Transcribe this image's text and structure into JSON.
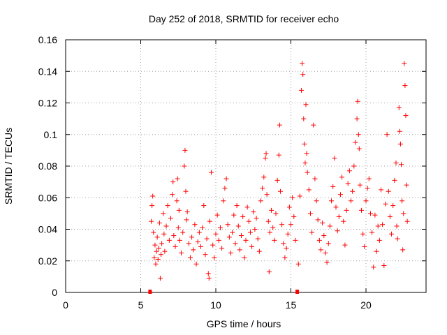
{
  "chart_data": {
    "type": "scatter",
    "title": "Day 252 of 2018, SRMTID for receiver echo",
    "xlabel": "GPS time / hours",
    "ylabel": "SRMTID / TECUs",
    "xlim": [
      0,
      24
    ],
    "ylim": [
      0,
      0.16
    ],
    "x_ticks": [
      0,
      5,
      10,
      15,
      20
    ],
    "x_tick_labels": [
      "0",
      "5",
      "10",
      "15",
      "20"
    ],
    "y_ticks": [
      0,
      0.02,
      0.04,
      0.06,
      0.08,
      0.1,
      0.12,
      0.14,
      0.16
    ],
    "y_tick_labels": [
      "0",
      "0.02",
      "0.04",
      "0.06",
      "0.08",
      "0.1",
      "0.12",
      "0.14",
      "0.16"
    ],
    "grid": true,
    "marker": "+",
    "marker_color": "#ff0000",
    "data_gap_markers_x": [
      5.6,
      15.4
    ],
    "series": [
      {
        "name": "SRMTID",
        "points": [
          [
            5.7,
            0.045
          ],
          [
            5.75,
            0.055
          ],
          [
            5.8,
            0.061
          ],
          [
            5.85,
            0.038
          ],
          [
            5.9,
            0.022
          ],
          [
            5.95,
            0.03
          ],
          [
            6.0,
            0.018
          ],
          [
            6.05,
            0.026
          ],
          [
            6.1,
            0.035
          ],
          [
            6.15,
            0.021
          ],
          [
            6.2,
            0.028
          ],
          [
            6.25,
            0.044
          ],
          [
            6.3,
            0.009
          ],
          [
            6.35,
            0.024
          ],
          [
            6.4,
            0.031
          ],
          [
            6.5,
            0.05
          ],
          [
            6.55,
            0.037
          ],
          [
            6.6,
            0.026
          ],
          [
            6.7,
            0.042
          ],
          [
            6.8,
            0.055
          ],
          [
            6.9,
            0.033
          ],
          [
            7.0,
            0.047
          ],
          [
            7.1,
            0.062
          ],
          [
            7.15,
            0.07
          ],
          [
            7.2,
            0.036
          ],
          [
            7.3,
            0.029
          ],
          [
            7.4,
            0.058
          ],
          [
            7.45,
            0.072
          ],
          [
            7.5,
            0.041
          ],
          [
            7.55,
            0.052
          ],
          [
            7.6,
            0.033
          ],
          [
            7.7,
            0.025
          ],
          [
            7.8,
            0.038
          ],
          [
            7.9,
            0.08
          ],
          [
            7.95,
            0.09
          ],
          [
            8.0,
            0.064
          ],
          [
            8.05,
            0.046
          ],
          [
            8.1,
            0.051
          ],
          [
            8.2,
            0.031
          ],
          [
            8.3,
            0.022
          ],
          [
            8.4,
            0.035
          ],
          [
            8.5,
            0.027
          ],
          [
            8.6,
            0.043
          ],
          [
            8.7,
            0.018
          ],
          [
            8.8,
            0.032
          ],
          [
            8.9,
            0.038
          ],
          [
            9.0,
            0.029
          ],
          [
            9.1,
            0.041
          ],
          [
            9.2,
            0.055
          ],
          [
            9.3,
            0.024
          ],
          [
            9.4,
            0.034
          ],
          [
            9.5,
            0.012
          ],
          [
            9.55,
            0.009
          ],
          [
            9.6,
            0.045
          ],
          [
            9.7,
            0.076
          ],
          [
            9.8,
            0.03
          ],
          [
            9.9,
            0.022
          ],
          [
            10.0,
            0.037
          ],
          [
            10.1,
            0.049
          ],
          [
            10.2,
            0.033
          ],
          [
            10.3,
            0.041
          ],
          [
            10.4,
            0.028
          ],
          [
            10.5,
            0.058
          ],
          [
            10.6,
            0.066
          ],
          [
            10.7,
            0.072
          ],
          [
            10.8,
            0.043
          ],
          [
            10.9,
            0.035
          ],
          [
            11.0,
            0.025
          ],
          [
            11.1,
            0.038
          ],
          [
            11.2,
            0.049
          ],
          [
            11.3,
            0.031
          ],
          [
            11.4,
            0.055
          ],
          [
            11.5,
            0.042
          ],
          [
            11.6,
            0.027
          ],
          [
            11.7,
            0.036
          ],
          [
            11.8,
            0.048
          ],
          [
            11.9,
            0.022
          ],
          [
            12.0,
            0.033
          ],
          [
            12.1,
            0.054
          ],
          [
            12.2,
            0.045
          ],
          [
            12.3,
            0.038
          ],
          [
            12.4,
            0.029
          ],
          [
            12.5,
            0.051
          ],
          [
            12.6,
            0.04
          ],
          [
            12.7,
            0.047
          ],
          [
            12.8,
            0.034
          ],
          [
            12.9,
            0.026
          ],
          [
            13.0,
            0.058
          ],
          [
            13.1,
            0.066
          ],
          [
            13.2,
            0.073
          ],
          [
            13.3,
            0.085
          ],
          [
            13.35,
            0.088
          ],
          [
            13.4,
            0.062
          ],
          [
            13.5,
            0.045
          ],
          [
            13.55,
            0.013
          ],
          [
            13.6,
            0.038
          ],
          [
            13.7,
            0.052
          ],
          [
            13.8,
            0.041
          ],
          [
            13.9,
            0.033
          ],
          [
            14.0,
            0.05
          ],
          [
            14.1,
            0.071
          ],
          [
            14.2,
            0.087
          ],
          [
            14.25,
            0.106
          ],
          [
            14.3,
            0.064
          ],
          [
            14.4,
            0.043
          ],
          [
            14.5,
            0.031
          ],
          [
            14.6,
            0.022
          ],
          [
            14.7,
            0.028
          ],
          [
            14.8,
            0.037
          ],
          [
            14.9,
            0.054
          ],
          [
            15.0,
            0.043
          ],
          [
            15.1,
            0.06
          ],
          [
            15.2,
            0.048
          ],
          [
            15.3,
            0.033
          ],
          [
            15.5,
            0.018
          ],
          [
            15.6,
            0.061
          ],
          [
            15.7,
            0.128
          ],
          [
            15.75,
            0.145
          ],
          [
            15.8,
            0.138
          ],
          [
            15.85,
            0.11
          ],
          [
            15.9,
            0.094
          ],
          [
            15.95,
            0.082
          ],
          [
            16.0,
            0.119
          ],
          [
            16.05,
            0.088
          ],
          [
            16.1,
            0.076
          ],
          [
            16.2,
            0.065
          ],
          [
            16.3,
            0.05
          ],
          [
            16.4,
            0.038
          ],
          [
            16.5,
            0.106
          ],
          [
            16.6,
            0.072
          ],
          [
            16.7,
            0.058
          ],
          [
            16.8,
            0.046
          ],
          [
            16.9,
            0.033
          ],
          [
            17.0,
            0.027
          ],
          [
            17.1,
            0.044
          ],
          [
            17.2,
            0.036
          ],
          [
            17.3,
            0.025
          ],
          [
            17.4,
            0.019
          ],
          [
            17.5,
            0.031
          ],
          [
            17.6,
            0.042
          ],
          [
            17.7,
            0.058
          ],
          [
            17.8,
            0.067
          ],
          [
            17.9,
            0.085
          ],
          [
            18.0,
            0.054
          ],
          [
            18.1,
            0.039
          ],
          [
            18.2,
            0.048
          ],
          [
            18.3,
            0.062
          ],
          [
            18.4,
            0.073
          ],
          [
            18.5,
            0.045
          ],
          [
            18.6,
            0.03
          ],
          [
            18.7,
            0.052
          ],
          [
            18.8,
            0.069
          ],
          [
            18.9,
            0.077
          ],
          [
            19.0,
            0.058
          ],
          [
            19.1,
            0.064
          ],
          [
            19.2,
            0.08
          ],
          [
            19.3,
            0.095
          ],
          [
            19.4,
            0.11
          ],
          [
            19.45,
            0.121
          ],
          [
            19.5,
            0.1
          ],
          [
            19.55,
            0.091
          ],
          [
            19.6,
            0.068
          ],
          [
            19.7,
            0.052
          ],
          [
            19.8,
            0.037
          ],
          [
            19.9,
            0.029
          ],
          [
            20.0,
            0.058
          ],
          [
            20.1,
            0.066
          ],
          [
            20.2,
            0.072
          ],
          [
            20.3,
            0.05
          ],
          [
            20.4,
            0.038
          ],
          [
            20.5,
            0.016
          ],
          [
            20.6,
            0.049
          ],
          [
            20.7,
            0.026
          ],
          [
            20.8,
            0.042
          ],
          [
            20.9,
            0.033
          ],
          [
            21.0,
            0.065
          ],
          [
            21.1,
            0.043
          ],
          [
            21.2,
            0.017
          ],
          [
            21.3,
            0.056
          ],
          [
            21.4,
            0.1
          ],
          [
            21.5,
            0.064
          ],
          [
            21.6,
            0.048
          ],
          [
            21.7,
            0.037
          ],
          [
            21.8,
            0.055
          ],
          [
            21.9,
            0.071
          ],
          [
            22.0,
            0.082
          ],
          [
            22.05,
            0.042
          ],
          [
            22.1,
            0.034
          ],
          [
            22.2,
            0.117
          ],
          [
            22.25,
            0.102
          ],
          [
            22.3,
            0.094
          ],
          [
            22.35,
            0.081
          ],
          [
            22.4,
            0.058
          ],
          [
            22.45,
            0.027
          ],
          [
            22.5,
            0.05
          ],
          [
            22.55,
            0.145
          ],
          [
            22.6,
            0.131
          ],
          [
            22.65,
            0.112
          ],
          [
            22.7,
            0.068
          ],
          [
            22.75,
            0.045
          ]
        ]
      }
    ]
  }
}
